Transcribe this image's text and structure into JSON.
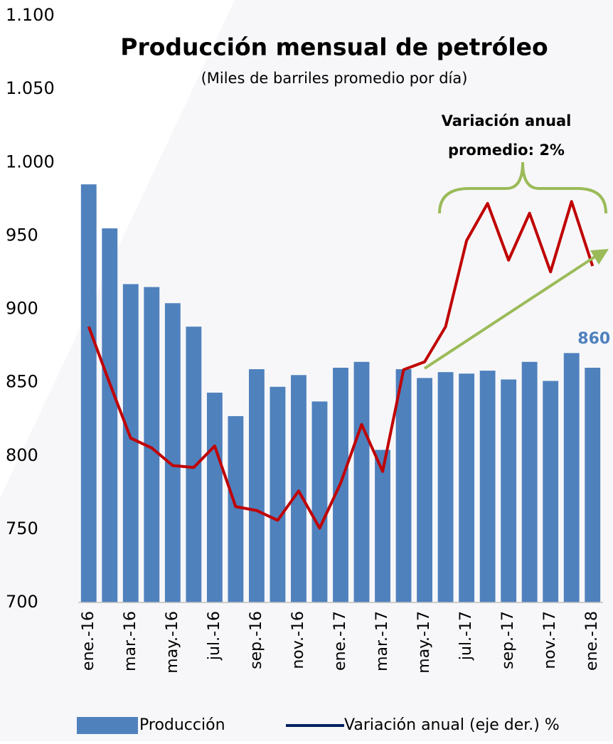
{
  "chart_data": {
    "type": "bar",
    "title": "Producción mensual de petróleo",
    "subtitle": "(Miles de barriles promedio por día)",
    "annotations": [
      "Variación anual",
      "promedio: 2%"
    ],
    "categories": [
      "ene.-16",
      null,
      "mar.-16",
      null,
      "may.-16",
      null,
      "jul.-16",
      null,
      "sep.-16",
      null,
      "nov.-16",
      null,
      "ene.-17",
      null,
      "mar.-17",
      null,
      "may.-17",
      null,
      "jul.-17",
      null,
      "sep.-17",
      null,
      "nov.-17",
      null,
      "ene.-18"
    ],
    "series": [
      {
        "name": "Producción",
        "color": "#4f81bd",
        "values": [
          985,
          955,
          917,
          915,
          904,
          888,
          843,
          827,
          859,
          847,
          855,
          837,
          860,
          864,
          804,
          859,
          853,
          857,
          856,
          858,
          852,
          864,
          851,
          870,
          860
        ]
      },
      {
        "name": "Variación anual (eje der.) %",
        "color": "#c00000",
        "legend_color": "#002060",
        "axis": "y2",
        "values": [
          -5.9,
          -8.8,
          -11.6,
          -12.1,
          -13.0,
          -13.1,
          -12.0,
          -15.1,
          -15.3,
          -15.8,
          -14.3,
          -16.2,
          -13.9,
          -10.9,
          -13.3,
          -8.1,
          -7.7,
          -5.9,
          -1.5,
          0.4,
          -2.5,
          -0.1,
          -3.1,
          0.5,
          -2.8
        ]
      }
    ],
    "ylim": [
      700,
      1100
    ],
    "yticks": [
      700,
      750,
      800,
      850,
      900,
      950,
      {
        "value": 1000,
        "label": "1.000"
      },
      {
        "value": 1050,
        "label": "1.050"
      },
      {
        "value": 1100,
        "label": "1.100"
      }
    ],
    "y2lim": [
      -20,
      10
    ]
  }
}
